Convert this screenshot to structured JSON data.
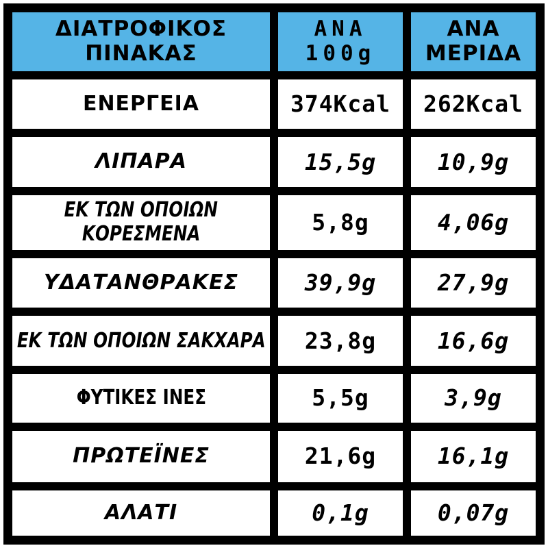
{
  "header": {
    "col1": {
      "line1": "ΔΙΑΤΡΟΦΙΚΟΣ",
      "line2": "ΠΙΝΑΚΑΣ"
    },
    "col2": {
      "line1": "ΑΝΑ",
      "line2": "100g"
    },
    "col3": {
      "line1": "ΑΝΑ",
      "line2": "ΜΕΡΙΔΑ"
    }
  },
  "rows": [
    {
      "label": "ΕΝΕΡΓΕΙΑ",
      "per100": "374Kcal",
      "serving": "262Kcal"
    },
    {
      "label": "ΛΙΠΑΡΑ",
      "per100": "15,5g",
      "serving": "10,9g"
    },
    {
      "label_line1": "ΕΚ ΤΩΝ ΟΠΟΙΩΝ",
      "label_line2": "ΚΟΡΕΣΜΕΝΑ",
      "per100": "5,8g",
      "serving": "4,06g"
    },
    {
      "label": "ΥΔΑΤΑΝΘΡΑΚΕΣ",
      "per100": "39,9g",
      "serving": "27,9g"
    },
    {
      "label": "ΕΚ ΤΩΝ ΟΠΟΙΩΝ ΣΑΚΧΑΡΑ",
      "per100": "23,8g",
      "serving": "16,6g"
    },
    {
      "label": "ΦΥΤΙΚΕΣ ΙΝΕΣ",
      "per100": "5,5g",
      "serving": "3,9g"
    },
    {
      "label": "ΠΡΩΤΕΪΝΕΣ",
      "per100": "21,6g",
      "serving": "16,1g"
    },
    {
      "label": "ΑΛΑΤΙ",
      "per100": "0,1g",
      "serving": "0,07g"
    }
  ],
  "colors": {
    "header_bg": "#55b4e6",
    "grid_lines": "#000000",
    "cell_bg": "#ffffff",
    "text": "#000000",
    "page_bg": "#ffffff"
  }
}
